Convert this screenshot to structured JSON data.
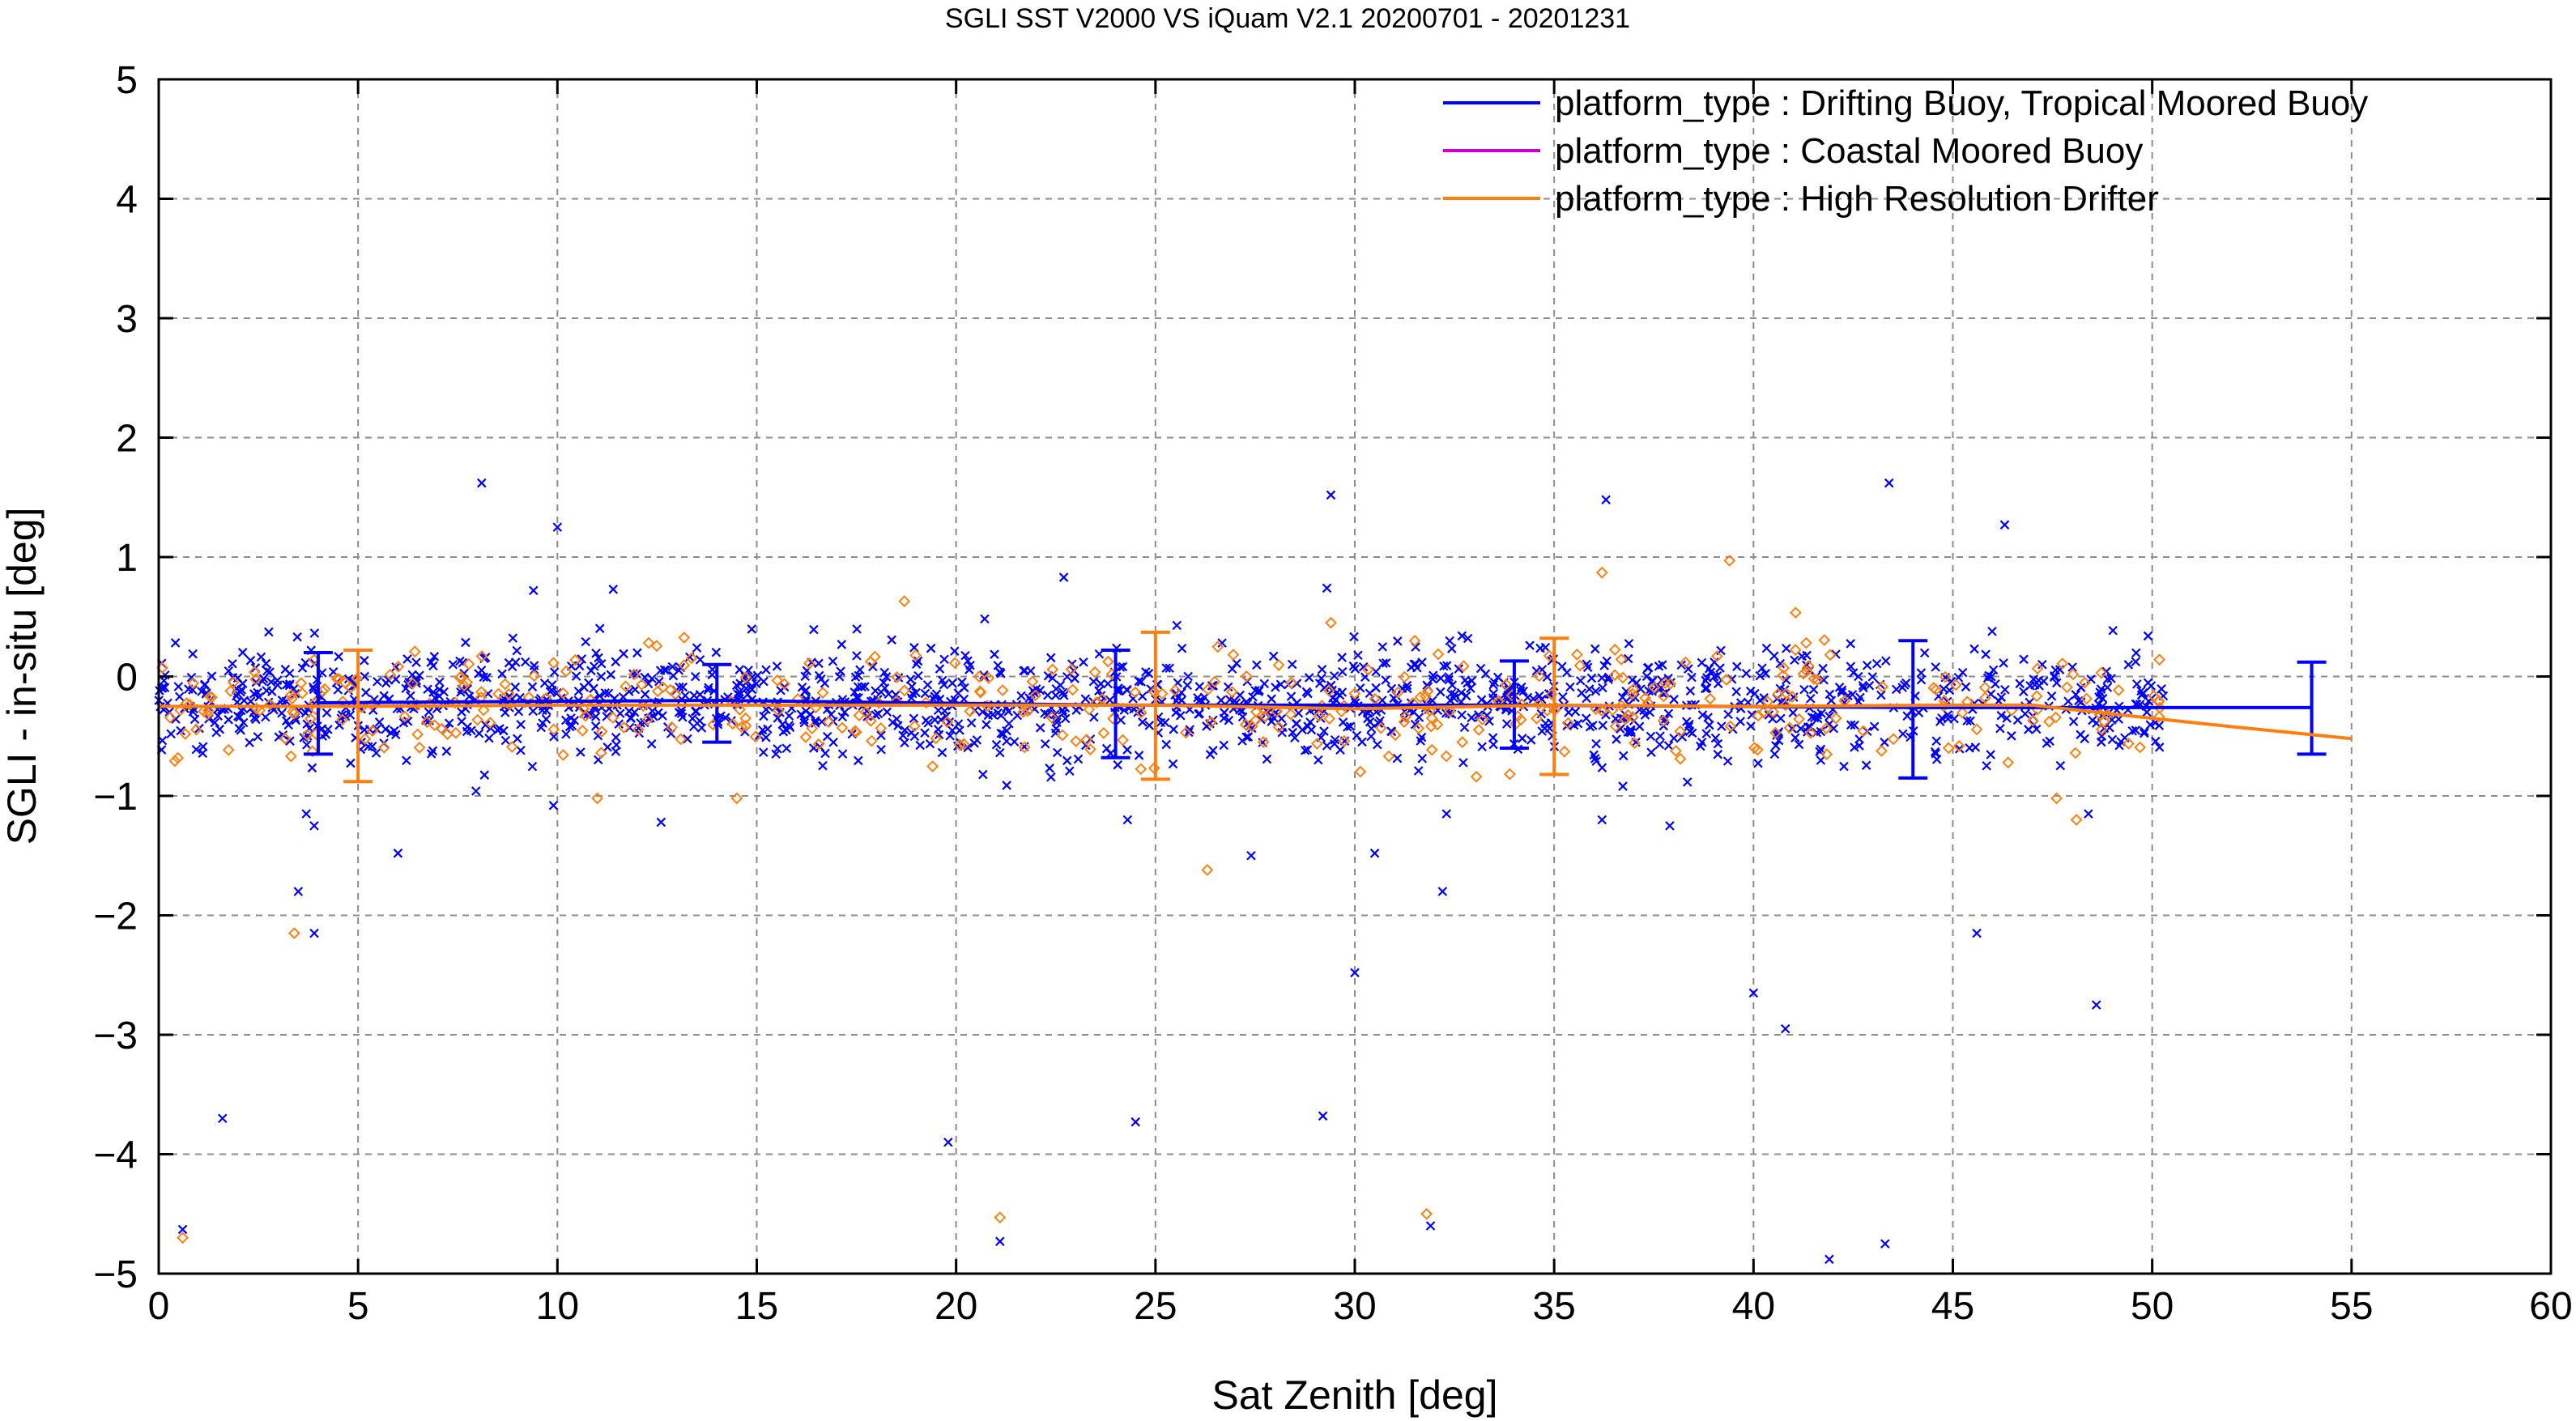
{
  "chart_data": {
    "type": "scatter",
    "title": "SGLI SST V2000 VS iQuam V2.1 20200701 - 20201231",
    "xlabel": "Sat Zenith [deg]",
    "ylabel": "SGLI - in-situ [deg]",
    "xlim": [
      0,
      60
    ],
    "ylim": [
      -5,
      5
    ],
    "xticks": [
      0,
      5,
      10,
      15,
      20,
      25,
      30,
      35,
      40,
      45,
      50,
      55,
      60
    ],
    "yticks": [
      -5,
      -4,
      -3,
      -2,
      -1,
      0,
      1,
      2,
      3,
      4,
      5
    ],
    "grid": true,
    "legend_position": "top-right",
    "series": [
      {
        "name": "platform_type : Drifting Buoy, Tropical Moored Buoy",
        "color": "#0000ff",
        "marker": "x",
        "mean_line": {
          "x": [
            4,
            14,
            24,
            34,
            44,
            54
          ],
          "y": [
            -0.22,
            -0.2,
            -0.24,
            -0.24,
            -0.26,
            -0.26
          ]
        },
        "error_bars": [
          {
            "x": 4,
            "low": -0.65,
            "high": 0.2
          },
          {
            "x": 14,
            "low": -0.55,
            "high": 0.1
          },
          {
            "x": 24,
            "low": -0.68,
            "high": 0.22
          },
          {
            "x": 34,
            "low": -0.6,
            "high": 0.13
          },
          {
            "x": 44,
            "low": -0.85,
            "high": 0.3
          },
          {
            "x": 54,
            "low": -0.65,
            "high": 0.12
          }
        ],
        "outliers": [
          [
            0.6,
            -4.63
          ],
          [
            1.6,
            -3.7
          ],
          [
            3.5,
            -1.8
          ],
          [
            3.7,
            -1.15
          ],
          [
            3.9,
            -1.25
          ],
          [
            3.9,
            -2.15
          ],
          [
            6.0,
            -1.48
          ],
          [
            8.1,
            1.62
          ],
          [
            9.4,
            0.72
          ],
          [
            9.9,
            -1.08
          ],
          [
            10.0,
            1.25
          ],
          [
            11.4,
            0.73
          ],
          [
            12.6,
            -1.22
          ],
          [
            19.8,
            -3.9
          ],
          [
            21.1,
            -4.73
          ],
          [
            22.7,
            0.83
          ],
          [
            24.3,
            -1.2
          ],
          [
            24.5,
            -3.73
          ],
          [
            27.4,
            -1.5
          ],
          [
            29.2,
            -3.68
          ],
          [
            29.4,
            1.52
          ],
          [
            29.3,
            0.74
          ],
          [
            30.0,
            -2.48
          ],
          [
            30.5,
            -1.48
          ],
          [
            31.9,
            -4.6
          ],
          [
            32.2,
            -1.8
          ],
          [
            32.3,
            -1.15
          ],
          [
            36.2,
            -1.2
          ],
          [
            36.3,
            1.48
          ],
          [
            37.9,
            -1.25
          ],
          [
            40.0,
            -2.65
          ],
          [
            40.8,
            -2.95
          ],
          [
            41.9,
            -4.88
          ],
          [
            43.3,
            -4.75
          ],
          [
            43.4,
            1.62
          ],
          [
            45.6,
            -2.15
          ],
          [
            46.3,
            1.27
          ],
          [
            48.6,
            -2.75
          ],
          [
            48.4,
            -1.15
          ]
        ]
      },
      {
        "name": "platform_type : Coastal Moored Buoy",
        "color": "#cc00cc",
        "marker": "circle"
      },
      {
        "name": "platform_type : High Resolution Drifter",
        "color": "#ff7f0e",
        "marker": "diamond",
        "mean_line": {
          "x": [
            0,
            5,
            10,
            15,
            20,
            25,
            30,
            35,
            40,
            45,
            47,
            50,
            52,
            55
          ],
          "y": [
            -0.25,
            -0.25,
            -0.24,
            -0.24,
            -0.24,
            -0.24,
            -0.27,
            -0.24,
            -0.25,
            -0.24,
            -0.24,
            -0.35,
            -0.42,
            -0.52
          ]
        },
        "error_bars": [
          {
            "x": 5,
            "low": -0.88,
            "high": 0.22
          },
          {
            "x": 25,
            "low": -0.86,
            "high": 0.37
          },
          {
            "x": 35,
            "low": -0.82,
            "high": 0.32
          }
        ],
        "outliers": [
          [
            0.6,
            -4.7
          ],
          [
            3.4,
            -2.15
          ],
          [
            18.7,
            0.63
          ],
          [
            21.1,
            -4.53
          ],
          [
            26.3,
            -1.62
          ],
          [
            29.4,
            0.45
          ],
          [
            31.8,
            -4.5
          ],
          [
            36.2,
            0.87
          ],
          [
            39.4,
            0.97
          ],
          [
            47.6,
            -1.02
          ],
          [
            48.1,
            -1.2
          ],
          [
            11.0,
            -1.02
          ],
          [
            14.5,
            -1.02
          ]
        ]
      }
    ]
  }
}
